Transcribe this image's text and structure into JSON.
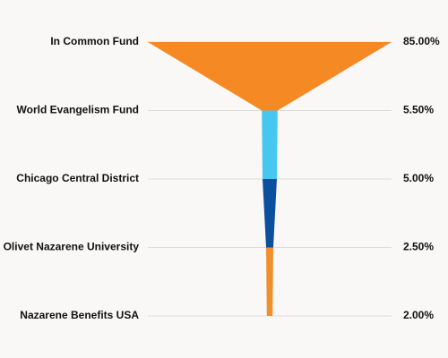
{
  "chart_data": {
    "type": "funnel",
    "categories": [
      "In Common Fund",
      "World Evangelism Fund",
      "Chicago Central District",
      "Olivet Nazarene University",
      "Nazarene Benefits USA"
    ],
    "values": [
      85,
      5.5,
      5,
      2.5,
      2
    ],
    "value_labels": [
      "85.00%",
      "5.50%",
      "5.00%",
      "2.50%",
      "2.00%"
    ],
    "segment_colors": [
      "#f58a25",
      "#45c7f0",
      "#0d4f9f",
      "#f0902d"
    ]
  }
}
